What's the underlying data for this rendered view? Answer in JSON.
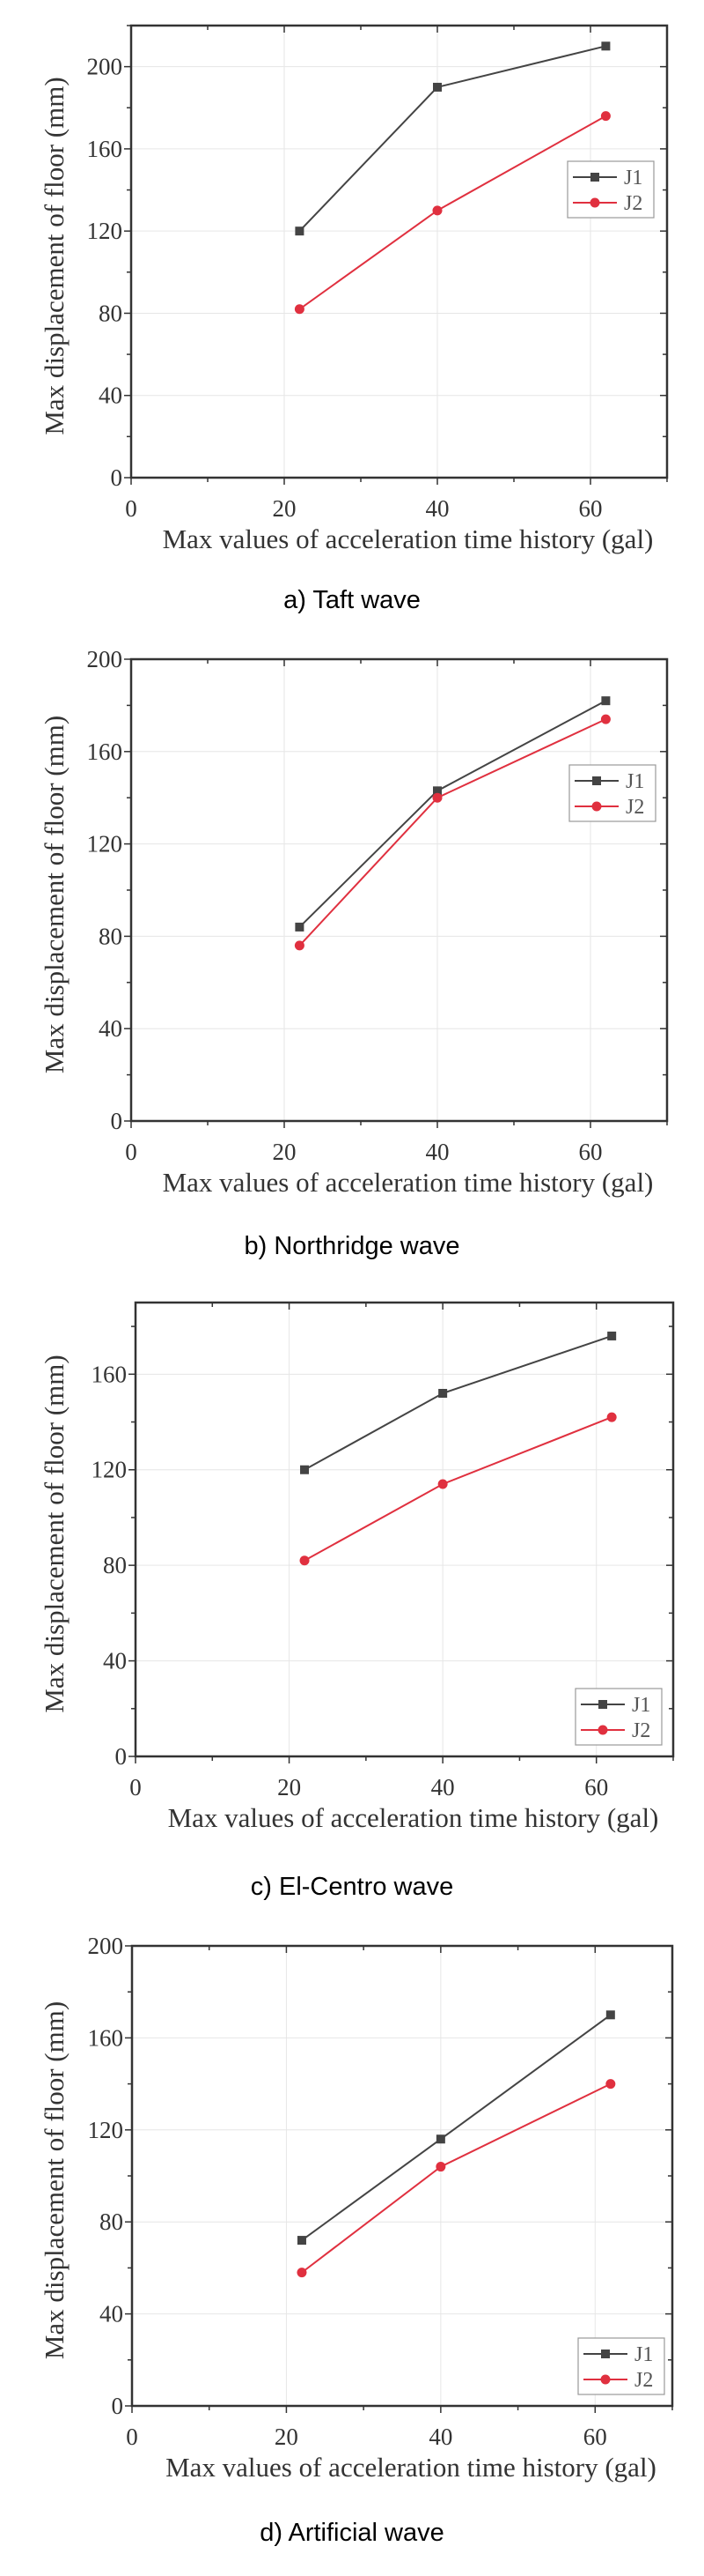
{
  "colors": {
    "J1": "#444444",
    "J2": "#e0303f",
    "axis": "#333333",
    "grid": "#e6e6e6"
  },
  "chart_data": [
    {
      "type": "line",
      "caption": "a) Taft wave",
      "xlabel": "Max values of acceleration time history (gal)",
      "ylabel": "Max displacement of floor (mm)",
      "xlim": [
        0,
        70
      ],
      "ylim": [
        0,
        220
      ],
      "xticks": [
        "0",
        "20",
        "40",
        "60"
      ],
      "yticks": [
        "0",
        "40",
        "80",
        "120",
        "160",
        "200"
      ],
      "x": [
        22,
        40,
        62
      ],
      "series": [
        {
          "name": "J1",
          "marker": "square",
          "values": [
            120,
            190,
            210
          ]
        },
        {
          "name": "J2",
          "marker": "circle",
          "values": [
            82,
            130,
            176
          ]
        }
      ],
      "legend": "right-middle",
      "grid": true
    },
    {
      "type": "line",
      "caption": "b) Northridge wave",
      "xlabel": "Max values of acceleration time history (gal)",
      "ylabel": "Max displacement of floor (mm)",
      "xlim": [
        0,
        70
      ],
      "ylim": [
        0,
        200
      ],
      "xticks": [
        "0",
        "20",
        "40",
        "60"
      ],
      "yticks": [
        "0",
        "40",
        "80",
        "120",
        "160",
        "200"
      ],
      "x": [
        22,
        40,
        62
      ],
      "series": [
        {
          "name": "J1",
          "marker": "square",
          "values": [
            84,
            143,
            182
          ]
        },
        {
          "name": "J2",
          "marker": "circle",
          "values": [
            76,
            140,
            174
          ]
        }
      ],
      "legend": "top-right",
      "grid": true
    },
    {
      "type": "line",
      "caption": "c) El-Centro wave",
      "xlabel": "Max values of acceleration time history (gal)",
      "ylabel": "Max displacement of floor (mm)",
      "xlim": [
        0,
        70
      ],
      "ylim": [
        0,
        190
      ],
      "xticks": [
        "0",
        "20",
        "40",
        "60"
      ],
      "yticks": [
        "0",
        "40",
        "80",
        "120",
        "160"
      ],
      "x": [
        22,
        40,
        62
      ],
      "series": [
        {
          "name": "J1",
          "marker": "square",
          "values": [
            120,
            152,
            176
          ]
        },
        {
          "name": "J2",
          "marker": "circle",
          "values": [
            82,
            114,
            142
          ]
        }
      ],
      "legend": "bottom-right",
      "grid": true
    },
    {
      "type": "line",
      "caption": "d) Artificial wave",
      "xlabel": "Max values of acceleration time history (gal)",
      "ylabel": "Max displacement of floor (mm)",
      "xlim": [
        0,
        70
      ],
      "ylim": [
        0,
        200
      ],
      "xticks": [
        "0",
        "20",
        "40",
        "60"
      ],
      "yticks": [
        "0",
        "40",
        "80",
        "120",
        "160",
        "200"
      ],
      "x": [
        22,
        40,
        62
      ],
      "series": [
        {
          "name": "J1",
          "marker": "square",
          "values": [
            72,
            116,
            170
          ]
        },
        {
          "name": "J2",
          "marker": "circle",
          "values": [
            58,
            104,
            140
          ]
        }
      ],
      "legend": "bottom-right",
      "grid": true
    }
  ]
}
